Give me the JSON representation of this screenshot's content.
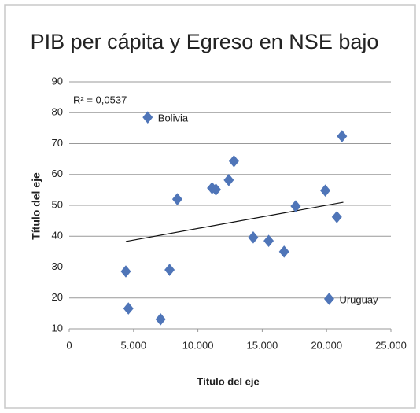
{
  "chart_data": {
    "type": "scatter",
    "title": "PIB per cápita y Egreso en NSE bajo",
    "xlabel": "Título del eje",
    "ylabel": "Título del eje",
    "annotation": "R² = 0,0537",
    "color": "#4f75b8",
    "x": [
      6100,
      12800,
      8400,
      11100,
      11400,
      12400,
      21200,
      19900,
      20800,
      17600,
      14300,
      15500,
      16700,
      4400,
      7800,
      4600,
      7100,
      20200
    ],
    "y": [
      78.5,
      64.3,
      52,
      55.6,
      55.1,
      58.2,
      72.4,
      54.8,
      46.2,
      49.7,
      39.6,
      38.5,
      35,
      28.6,
      29.1,
      16.6,
      13.1,
      19.7
    ],
    "point_labels": [
      "Bolivia",
      null,
      null,
      null,
      null,
      null,
      null,
      null,
      null,
      null,
      null,
      null,
      null,
      null,
      null,
      null,
      null,
      "Uruguay"
    ],
    "trendline": {
      "x": [
        4400,
        21300
      ],
      "y": [
        38.3,
        51
      ]
    },
    "xlim": [
      0,
      25000
    ],
    "xticks": [
      0,
      {
        "value": 5000,
        "label": "5.000"
      },
      {
        "value": 10000,
        "label": "10.000"
      },
      {
        "value": 15000,
        "label": "15.000"
      },
      {
        "value": 20000,
        "label": "20.000"
      },
      {
        "value": 25000,
        "label": "25.000"
      }
    ],
    "ylim": [
      10,
      90
    ],
    "yticks": [
      10,
      20,
      30,
      40,
      50,
      60,
      70,
      80,
      90
    ],
    "grid": true
  }
}
